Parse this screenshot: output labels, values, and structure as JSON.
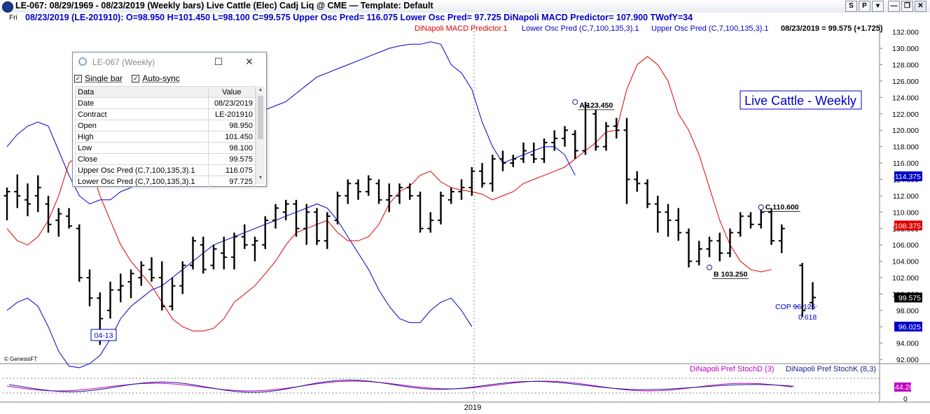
{
  "window": {
    "title": "LE-067:  08/29/1969 - 08/23/2019  (Weekly bars)   Live Cattle (Elec) Cadj Liq @ CME  —  Template: Default",
    "buttons": [
      "S",
      "P",
      "▾",
      "—",
      "❐",
      "✕"
    ]
  },
  "infobar": {
    "day": "Fri",
    "text": "08/23/2019 (LE-201910):  O=98.950  H=101.450  L=98.100  C=99.575  Upper Osc Pred= 116.075  Lower Osc Pred= 97.725  DiNapoli MACD Predictor= 107.900  TWofY=34"
  },
  "colors": {
    "macd": "#e00000",
    "osc": "#0000c8",
    "stochD": "#c000c0",
    "stochK": "#1a1a8a",
    "bars": "#000000"
  },
  "data_window": {
    "title": "LE-067 (Weekly)",
    "single_bar": "Single bar",
    "auto_sync": "Auto-sync",
    "col_data": "Data",
    "col_value": "Value",
    "rows": [
      [
        "Date",
        "08/23/2019"
      ],
      [
        "Contract",
        "LE-201910"
      ],
      [
        "Open",
        "98.950"
      ],
      [
        "High",
        "101.450"
      ],
      [
        "Low",
        "98.100"
      ],
      [
        "Close",
        "99.575"
      ],
      [
        "Upper Osc Pred (C,7,100,135,3).1",
        "116.075"
      ],
      [
        "Lower Osc Pred (C,7,100,135,3).1",
        "97.725"
      ]
    ]
  },
  "chart_data": {
    "type": "ohlc",
    "title": "Live Cattle - Weekly",
    "legend": {
      "macd": "DiNapoli MACD Predictor.1",
      "lower": "Lower Osc Pred (C,7,100,135,3).1",
      "upper": "Upper Osc Pred (C,7,100,135,3).1",
      "last": "08/23/2019 = 99.575 (+1.725)"
    },
    "ylim": [
      91.5,
      133.0
    ],
    "yticks": [
      "132.000",
      "130.000",
      "128.000",
      "126.000",
      "124.000",
      "122.000",
      "120.000",
      "118.000",
      "116.000",
      "114.000",
      "112.000",
      "110.000",
      "108.000",
      "106.000",
      "104.000",
      "102.000",
      "100.000",
      "98.000",
      "96.000",
      "94.000",
      "92.000"
    ],
    "year_label": "2019",
    "credit": "© GenesisFT",
    "price_tags": [
      {
        "text": "114.375",
        "value": 114.375,
        "color": "#0000c8"
      },
      {
        "text": "108.375",
        "value": 108.375,
        "color": "#e00000"
      },
      {
        "text": "99.575",
        "value": 99.575,
        "color": "#000000"
      },
      {
        "text": "96.025",
        "value": 96.025,
        "color": "#0000c8"
      }
    ],
    "annotations": {
      "A": {
        "label": "A 123.450",
        "bar": 55,
        "value": 123.45
      },
      "B": {
        "label": "B 103.250",
        "bar": 68,
        "value": 103.25
      },
      "C": {
        "label": "C 110.600",
        "bar": 73,
        "value": 110.6
      },
      "date_box": {
        "label": "04-13",
        "bar": 8
      },
      "cop": "COP 96.125",
      "cop_ratio": "0.618"
    },
    "ohlc": [
      [
        112.0,
        113.0,
        109.0,
        112.5
      ],
      [
        112.5,
        114.6,
        110.5,
        112.0
      ],
      [
        111.5,
        113.5,
        109.5,
        111.0
      ],
      [
        112.0,
        114.5,
        110.0,
        113.0
      ],
      [
        111.0,
        112.0,
        107.5,
        108.5
      ],
      [
        109.0,
        110.5,
        107.0,
        109.8
      ],
      [
        109.5,
        110.5,
        108.0,
        108.3
      ],
      [
        108.0,
        108.5,
        101.5,
        102.0
      ],
      [
        102.0,
        103.0,
        98.5,
        99.5
      ],
      [
        99.5,
        100.2,
        93.8,
        97.0
      ],
      [
        98.0,
        101.5,
        97.0,
        100.5
      ],
      [
        100.5,
        102.5,
        99.0,
        101.0
      ],
      [
        101.5,
        103.0,
        99.5,
        102.5
      ],
      [
        102.0,
        104.0,
        101.0,
        103.5
      ],
      [
        103.0,
        104.5,
        101.5,
        102.0
      ],
      [
        102.0,
        104.0,
        98.0,
        98.5
      ],
      [
        98.5,
        102.0,
        98.0,
        101.0
      ],
      [
        101.0,
        104.0,
        100.0,
        103.5
      ],
      [
        103.5,
        107.0,
        103.0,
        106.5
      ],
      [
        106.0,
        107.0,
        102.5,
        103.0
      ],
      [
        103.5,
        106.0,
        103.0,
        105.5
      ],
      [
        105.0,
        107.0,
        103.0,
        104.5
      ],
      [
        104.5,
        107.5,
        103.0,
        107.0
      ],
      [
        107.0,
        108.5,
        105.5,
        106.0
      ],
      [
        106.0,
        107.0,
        104.0,
        106.5
      ],
      [
        106.0,
        109.5,
        105.5,
        109.0
      ],
      [
        109.0,
        111.0,
        108.0,
        110.5
      ],
      [
        110.0,
        111.5,
        109.0,
        111.0
      ],
      [
        111.0,
        111.5,
        107.0,
        108.0
      ],
      [
        108.0,
        111.0,
        106.0,
        110.0
      ],
      [
        110.0,
        110.5,
        106.0,
        106.5
      ],
      [
        106.5,
        110.0,
        105.5,
        109.5
      ],
      [
        109.0,
        112.5,
        108.5,
        112.0
      ],
      [
        112.0,
        114.0,
        111.0,
        113.5
      ],
      [
        113.5,
        114.0,
        111.5,
        112.5
      ],
      [
        112.5,
        114.5,
        112.0,
        114.0
      ],
      [
        113.5,
        114.0,
        111.0,
        111.5
      ],
      [
        111.5,
        113.5,
        110.0,
        112.0
      ],
      [
        112.0,
        113.5,
        111.0,
        113.0
      ],
      [
        113.0,
        113.5,
        111.5,
        112.0
      ],
      [
        112.0,
        112.5,
        107.5,
        108.0
      ],
      [
        108.0,
        110.0,
        107.5,
        109.0
      ],
      [
        109.0,
        112.5,
        108.5,
        112.0
      ],
      [
        111.5,
        113.0,
        111.0,
        112.5
      ],
      [
        112.5,
        114.0,
        111.5,
        113.0
      ],
      [
        113.0,
        115.5,
        112.0,
        115.0
      ],
      [
        115.0,
        116.0,
        113.0,
        113.5
      ],
      [
        113.5,
        117.0,
        112.5,
        116.5
      ],
      [
        116.5,
        117.5,
        115.0,
        116.0
      ],
      [
        116.0,
        117.0,
        115.5,
        116.5
      ],
      [
        116.5,
        118.5,
        116.0,
        117.5
      ],
      [
        117.0,
        118.5,
        116.0,
        116.5
      ],
      [
        116.5,
        119.0,
        116.0,
        118.5
      ],
      [
        118.5,
        120.0,
        117.5,
        119.0
      ],
      [
        119.0,
        120.5,
        118.0,
        120.0
      ],
      [
        119.5,
        120.0,
        116.5,
        117.5
      ],
      [
        117.5,
        123.45,
        117.0,
        123.0
      ],
      [
        122.0,
        122.5,
        117.5,
        118.0
      ],
      [
        118.0,
        121.0,
        117.5,
        120.5
      ],
      [
        120.5,
        121.5,
        119.0,
        120.0
      ],
      [
        120.0,
        121.5,
        111.0,
        114.0
      ],
      [
        114.0,
        115.0,
        112.5,
        113.5
      ],
      [
        113.5,
        114.0,
        110.5,
        111.0
      ],
      [
        111.0,
        112.0,
        107.5,
        110.0
      ],
      [
        110.0,
        111.0,
        107.0,
        109.0
      ],
      [
        109.0,
        110.5,
        106.5,
        107.5
      ],
      [
        107.5,
        108.0,
        103.25,
        104.0
      ],
      [
        104.0,
        106.5,
        103.5,
        105.5
      ],
      [
        105.5,
        107.0,
        104.5,
        106.5
      ],
      [
        106.5,
        107.5,
        104.0,
        105.0
      ],
      [
        105.0,
        108.0,
        104.5,
        107.5
      ],
      [
        107.5,
        110.0,
        107.0,
        109.5
      ],
      [
        109.5,
        110.0,
        108.0,
        108.5
      ],
      [
        108.5,
        110.6,
        108.0,
        110.0
      ],
      [
        110.0,
        110.5,
        106.0,
        106.5
      ],
      [
        106.5,
        108.5,
        105.0,
        108.0
      ],
      [
        103.5,
        103.8,
        97.2,
        98.0
      ],
      [
        98.95,
        101.45,
        98.1,
        99.575
      ]
    ],
    "bar_indices": [
      0,
      1,
      2,
      3,
      4,
      5,
      6,
      7,
      8,
      9,
      10,
      11,
      12,
      13,
      14,
      15,
      16,
      17,
      18,
      19,
      20,
      21,
      22,
      23,
      24,
      25,
      26,
      27,
      28,
      29,
      30,
      31,
      32,
      33,
      34,
      35,
      36,
      37,
      38,
      39,
      40,
      41,
      42,
      43,
      44,
      45,
      46,
      47,
      48,
      49,
      50,
      51,
      52,
      53,
      54,
      55,
      56,
      57,
      58,
      59,
      60,
      61,
      62,
      63,
      64,
      65,
      66,
      67,
      68,
      69,
      70,
      71,
      72,
      73,
      74,
      75,
      77,
      78
    ],
    "macd": [
      [
        0,
        108
      ],
      [
        1,
        106.5
      ],
      [
        2,
        106
      ],
      [
        3,
        107
      ],
      [
        4,
        109
      ],
      [
        5,
        112
      ],
      [
        6,
        116
      ],
      [
        7,
        117
      ],
      [
        8,
        116
      ],
      [
        9,
        112
      ],
      [
        10,
        109
      ],
      [
        11,
        106
      ],
      [
        12,
        104
      ],
      [
        13,
        102.5
      ],
      [
        14,
        101
      ],
      [
        15,
        99
      ],
      [
        16,
        97
      ],
      [
        17,
        96
      ],
      [
        18,
        95.5
      ],
      [
        19,
        95.5
      ],
      [
        20,
        95.8
      ],
      [
        21,
        97
      ],
      [
        22,
        99
      ],
      [
        23,
        100
      ],
      [
        24,
        101
      ],
      [
        25,
        102.5
      ],
      [
        26,
        104
      ],
      [
        27,
        106
      ],
      [
        28,
        107.5
      ],
      [
        29,
        108
      ],
      [
        30,
        108.5
      ],
      [
        31,
        109
      ],
      [
        32,
        107.5
      ],
      [
        33,
        106.5
      ],
      [
        34,
        106.5
      ],
      [
        35,
        107
      ],
      [
        36,
        108.5
      ],
      [
        37,
        111
      ],
      [
        38,
        112.5
      ],
      [
        39,
        113.2
      ],
      [
        40,
        114.5
      ],
      [
        41,
        115
      ],
      [
        42,
        113.7
      ],
      [
        43,
        113
      ],
      [
        44,
        112.7
      ],
      [
        45,
        112.5
      ],
      [
        46,
        112.2
      ],
      [
        47,
        111.5
      ],
      [
        48,
        112
      ],
      [
        49,
        112.5
      ],
      [
        50,
        113.5
      ],
      [
        51,
        114
      ],
      [
        52,
        114.5
      ],
      [
        53,
        115
      ],
      [
        54,
        115.5
      ],
      [
        55,
        116.5
      ],
      [
        56,
        117.5
      ],
      [
        57,
        118.5
      ],
      [
        58,
        119.8
      ],
      [
        59,
        120
      ],
      [
        60,
        125
      ],
      [
        61,
        128
      ],
      [
        62,
        129
      ],
      [
        63,
        128
      ],
      [
        64,
        126
      ],
      [
        65,
        122
      ],
      [
        66,
        120
      ],
      [
        67,
        117
      ],
      [
        68,
        113
      ],
      [
        69,
        109
      ],
      [
        70,
        106
      ],
      [
        71,
        104
      ],
      [
        72,
        103
      ],
      [
        73,
        102.7
      ],
      [
        74,
        103
      ]
    ],
    "upper": [
      [
        0,
        118
      ],
      [
        1,
        119.5
      ],
      [
        2,
        120.5
      ],
      [
        3,
        121
      ],
      [
        4,
        120.5
      ],
      [
        5,
        117.5
      ],
      [
        6,
        114.5
      ],
      [
        7,
        112
      ],
      [
        8,
        111
      ],
      [
        9,
        111.5
      ],
      [
        10,
        111.5
      ],
      [
        11,
        112.5
      ],
      [
        12,
        113
      ],
      [
        13,
        113.5
      ],
      [
        14,
        113.5
      ],
      [
        15,
        114
      ],
      [
        16,
        114.5
      ],
      [
        17,
        116.5
      ],
      [
        18,
        117.5
      ],
      [
        19,
        119
      ],
      [
        20,
        120
      ],
      [
        21,
        120.5
      ],
      [
        22,
        121
      ],
      [
        23,
        121
      ],
      [
        24,
        121.5
      ],
      [
        25,
        122.5
      ],
      [
        26,
        123
      ],
      [
        27,
        123.5
      ],
      [
        28,
        124.5
      ],
      [
        29,
        125.5
      ],
      [
        30,
        126.5
      ],
      [
        31,
        127
      ],
      [
        32,
        127.5
      ],
      [
        33,
        128
      ],
      [
        34,
        128.5
      ],
      [
        35,
        129
      ],
      [
        36,
        129.5
      ],
      [
        37,
        130
      ],
      [
        38,
        130.3
      ],
      [
        39,
        130.5
      ],
      [
        40,
        130.5
      ],
      [
        41,
        130.8
      ],
      [
        42,
        130.5
      ],
      [
        43,
        128
      ],
      [
        44,
        127
      ],
      [
        45,
        125
      ],
      [
        46,
        121
      ],
      [
        47,
        118
      ],
      [
        48,
        116
      ],
      [
        49,
        116.5
      ],
      [
        50,
        117
      ],
      [
        51,
        117.5
      ],
      [
        52,
        118
      ],
      [
        53,
        118
      ],
      [
        54,
        117
      ],
      [
        55,
        114.5
      ]
    ],
    "lower": [
      [
        0,
        98
      ],
      [
        1,
        99
      ],
      [
        2,
        99.5
      ],
      [
        3,
        98.5
      ],
      [
        4,
        96
      ],
      [
        5,
        93
      ],
      [
        6,
        91.2
      ],
      [
        7,
        91
      ],
      [
        8,
        91.5
      ],
      [
        9,
        92.5
      ],
      [
        10,
        94.5
      ],
      [
        11,
        97
      ],
      [
        12,
        98.5
      ],
      [
        13,
        99.5
      ],
      [
        14,
        100.5
      ],
      [
        15,
        101
      ],
      [
        16,
        102
      ],
      [
        17,
        103
      ],
      [
        18,
        104
      ],
      [
        19,
        105
      ],
      [
        20,
        106
      ],
      [
        21,
        106.5
      ],
      [
        22,
        107
      ],
      [
        23,
        107.5
      ],
      [
        24,
        108
      ],
      [
        25,
        108.5
      ],
      [
        26,
        109
      ],
      [
        27,
        109.5
      ],
      [
        28,
        110
      ],
      [
        29,
        110.5
      ],
      [
        30,
        111
      ],
      [
        31,
        110.5
      ],
      [
        32,
        109
      ],
      [
        33,
        107
      ],
      [
        34,
        105
      ],
      [
        35,
        103
      ],
      [
        36,
        100.5
      ],
      [
        37,
        98.5
      ],
      [
        38,
        97
      ],
      [
        39,
        96.5
      ],
      [
        40,
        96.5
      ],
      [
        41,
        98
      ],
      [
        42,
        99
      ],
      [
        43,
        99.5
      ],
      [
        44,
        98
      ],
      [
        45,
        96
      ]
    ],
    "stoch": {
      "legend_d": "DiNapoli Pref StochD (3)",
      "legend_k": "DiNapoli Pref StochK (8,3)",
      "value_tag": "44.28",
      "zero_label": "0"
    }
  }
}
